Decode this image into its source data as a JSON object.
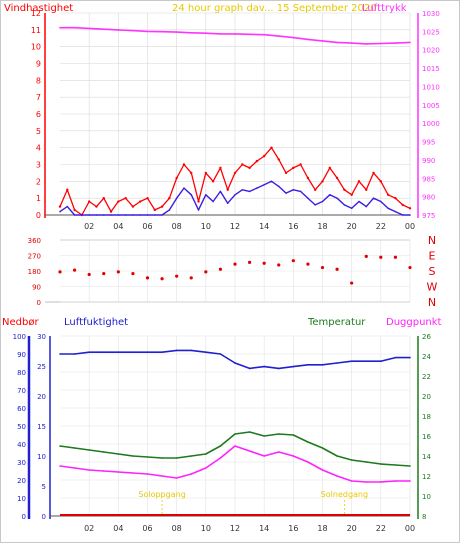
{
  "header": {
    "left_label": "Vindhastighet",
    "title": "24 hour graph dav... 15 September 2020",
    "right_label": "Lufttrykk"
  },
  "colors": {
    "wind": "#ff0000",
    "wind_avg": "#3a1fe0",
    "pressure": "#ff33ff",
    "direction": "#e00000",
    "humidity": "#2020d0",
    "temperature": "#1e7a1e",
    "dewpoint": "#ff22ff",
    "rain": "#e00000",
    "sun": "#e8c800",
    "grid": "#9a9a9a"
  },
  "chart_data": [
    {
      "type": "line",
      "panel": "wind_pressure",
      "x_ticks": [
        "02",
        "04",
        "06",
        "08",
        "10",
        "12",
        "14",
        "16",
        "18",
        "20",
        "22",
        "00"
      ],
      "xlim": [
        0,
        24
      ],
      "left_axis": {
        "label": "Vindhastighet",
        "ylim": [
          0,
          12
        ],
        "ticks": [
          0,
          1,
          2,
          3,
          4,
          5,
          6,
          7,
          8,
          9,
          10,
          11,
          12
        ]
      },
      "right_axis": {
        "label": "Lufttrykk",
        "ylim": [
          975,
          1030
        ],
        "ticks": [
          975,
          980,
          985,
          990,
          995,
          1000,
          1005,
          1010,
          1015,
          1020,
          1025,
          1030
        ]
      },
      "series": [
        {
          "role": "gust",
          "axis": "left",
          "x": [
            0,
            0.5,
            1,
            1.5,
            2,
            2.5,
            3,
            3.5,
            4,
            4.5,
            5,
            5.5,
            6,
            6.5,
            7,
            7.5,
            8,
            8.5,
            9,
            9.5,
            10,
            10.5,
            11,
            11.5,
            12,
            12.5,
            13,
            13.5,
            14,
            14.5,
            15,
            15.5,
            16,
            16.5,
            17,
            17.5,
            18,
            18.5,
            19,
            19.5,
            20,
            20.5,
            21,
            21.5,
            22,
            22.5,
            23,
            23.5,
            24
          ],
          "values": [
            0.5,
            1.5,
            0.3,
            0,
            0.8,
            0.5,
            1,
            0.2,
            0.8,
            1,
            0.5,
            0.8,
            1,
            0.3,
            0.5,
            1,
            2.2,
            3,
            2.5,
            0.8,
            2.5,
            2,
            2.8,
            1.5,
            2.5,
            3,
            2.8,
            3.2,
            3.5,
            4,
            3.3,
            2.5,
            2.8,
            3,
            2.2,
            1.5,
            2,
            2.8,
            2.2,
            1.5,
            1.2,
            2,
            1.5,
            2.5,
            2,
            1.2,
            1,
            0.6,
            0.4
          ]
        },
        {
          "role": "average",
          "axis": "left",
          "x": [
            0,
            0.5,
            1,
            1.5,
            2,
            2.5,
            3,
            3.5,
            4,
            4.5,
            5,
            5.5,
            6,
            6.5,
            7,
            7.5,
            8,
            8.5,
            9,
            9.5,
            10,
            10.5,
            11,
            11.5,
            12,
            12.5,
            13,
            13.5,
            14,
            14.5,
            15,
            15.5,
            16,
            16.5,
            17,
            17.5,
            18,
            18.5,
            19,
            19.5,
            20,
            20.5,
            21,
            21.5,
            22,
            22.5,
            23,
            23.5,
            24
          ],
          "values": [
            0.2,
            0.5,
            0,
            0,
            0,
            0,
            0,
            0,
            0,
            0,
            0,
            0,
            0,
            0,
            0,
            0.3,
            1,
            1.6,
            1.2,
            0.3,
            1.2,
            0.8,
            1.4,
            0.7,
            1.2,
            1.5,
            1.4,
            1.6,
            1.8,
            2,
            1.7,
            1.3,
            1.5,
            1.4,
            1,
            0.6,
            0.8,
            1.2,
            1,
            0.6,
            0.4,
            0.8,
            0.5,
            1,
            0.8,
            0.4,
            0.2,
            0,
            0
          ]
        },
        {
          "role": "pressure",
          "axis": "right",
          "x": [
            0,
            1,
            2,
            3,
            4,
            5,
            6,
            7,
            8,
            9,
            10,
            11,
            12,
            13,
            14,
            15,
            16,
            17,
            18,
            19,
            20,
            21,
            22,
            23,
            24
          ],
          "values": [
            1026.0,
            1026.0,
            1025.8,
            1025.6,
            1025.4,
            1025.2,
            1025.0,
            1024.9,
            1024.8,
            1024.6,
            1024.5,
            1024.3,
            1024.3,
            1024.2,
            1024.1,
            1023.7,
            1023.3,
            1022.8,
            1022.4,
            1022.0,
            1021.8,
            1021.6,
            1021.7,
            1021.8,
            1022.0
          ]
        }
      ]
    },
    {
      "type": "scatter",
      "panel": "wind_direction",
      "xlim": [
        0,
        24
      ],
      "ylim": [
        0,
        360
      ],
      "ticks": [
        0,
        90,
        180,
        270,
        360
      ],
      "compass": [
        "N",
        "W",
        "S",
        "E",
        "N"
      ],
      "series": [
        {
          "name": "",
          "x": [
            0,
            1,
            2,
            3,
            4,
            5,
            6,
            7,
            8,
            9,
            10,
            11,
            12,
            13,
            14,
            15,
            16,
            17,
            18,
            19,
            20,
            21,
            22,
            23,
            24
          ],
          "values": [
            175,
            185,
            160,
            165,
            175,
            165,
            140,
            135,
            150,
            140,
            175,
            190,
            220,
            230,
            225,
            215,
            240,
            220,
            200,
            190,
            110,
            265,
            260,
            260,
            200
          ]
        }
      ]
    },
    {
      "type": "line",
      "panel": "humidity_temp",
      "left_axes": [
        {
          "label": "Nedbør",
          "ylim": [
            0,
            100
          ],
          "ticks": [
            0,
            10,
            20,
            30,
            40,
            50,
            60,
            70,
            80,
            90,
            100
          ]
        },
        {
          "label": "Luftfuktighet",
          "ylim": [
            0,
            30
          ],
          "ticks": [
            0,
            5,
            10,
            15,
            20,
            25,
            30
          ]
        }
      ],
      "right_axis": {
        "label": "Temperatur",
        "ylim": [
          8,
          26
        ],
        "ticks": [
          8,
          10,
          12,
          14,
          16,
          18,
          20,
          22,
          24,
          26
        ]
      },
      "right_label_2": "Duggpunkt",
      "annotations": [
        "Soloppgang",
        "Solnedgang"
      ],
      "series": [
        {
          "role": "humidity",
          "axis": "left_pct",
          "x": [
            0,
            1,
            2,
            3,
            4,
            5,
            6,
            7,
            8,
            9,
            10,
            11,
            12,
            13,
            14,
            15,
            16,
            17,
            18,
            19,
            20,
            21,
            22,
            23,
            24
          ],
          "values": [
            90,
            90,
            91,
            91,
            91,
            91,
            91,
            91,
            92,
            92,
            91,
            90,
            85,
            82,
            83,
            82,
            83,
            84,
            84,
            85,
            86,
            86,
            86,
            88,
            88
          ]
        },
        {
          "role": "temperature",
          "axis": "right",
          "x": [
            0,
            1,
            2,
            3,
            4,
            5,
            6,
            7,
            8,
            9,
            10,
            11,
            12,
            13,
            14,
            15,
            16,
            17,
            18,
            19,
            20,
            21,
            22,
            23,
            24
          ],
          "values": [
            15,
            14.8,
            14.6,
            14.4,
            14.2,
            14.0,
            13.9,
            13.8,
            13.8,
            14.0,
            14.2,
            15.0,
            16.2,
            16.4,
            16.0,
            16.2,
            16.1,
            15.4,
            14.8,
            14.0,
            13.6,
            13.4,
            13.2,
            13.1,
            13.0
          ]
        },
        {
          "role": "dewpoint",
          "axis": "right",
          "x": [
            0,
            1,
            2,
            3,
            4,
            5,
            6,
            7,
            8,
            9,
            10,
            11,
            12,
            13,
            14,
            15,
            16,
            17,
            18,
            19,
            20,
            21,
            22,
            23,
            24
          ],
          "values": [
            13.0,
            12.8,
            12.6,
            12.5,
            12.4,
            12.3,
            12.2,
            12.0,
            11.8,
            12.2,
            12.8,
            13.8,
            15.0,
            14.5,
            14.0,
            14.4,
            14.0,
            13.4,
            12.6,
            12.0,
            11.5,
            11.4,
            11.4,
            11.5,
            11.5
          ]
        },
        {
          "role": "rain",
          "axis": "left_mm",
          "x": [
            0,
            24
          ],
          "values": [
            0,
            0
          ]
        }
      ]
    }
  ]
}
